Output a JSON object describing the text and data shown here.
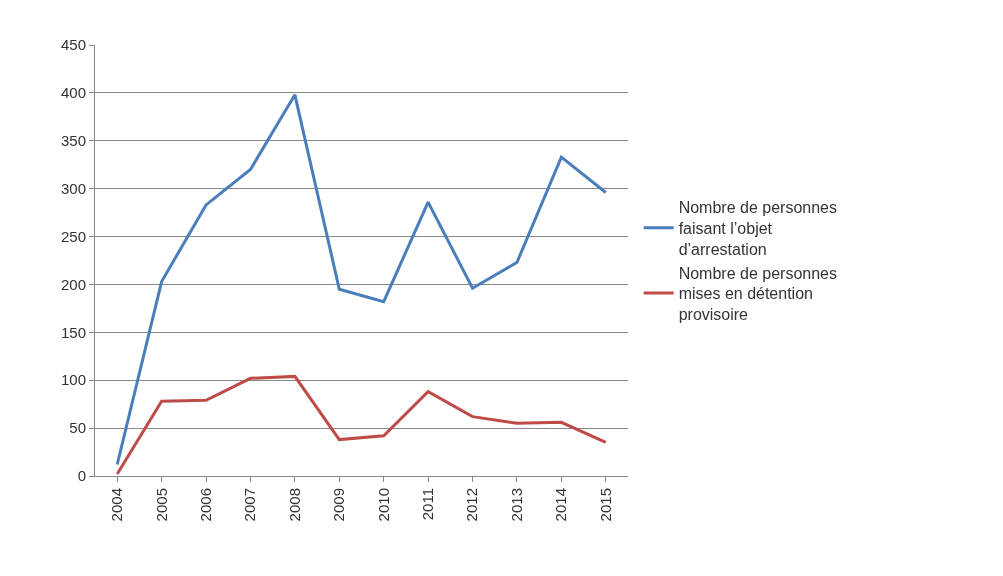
{
  "chart_data": {
    "type": "line",
    "categories": [
      "2004",
      "2005",
      "2006",
      "2007",
      "2008",
      "2009",
      "2010",
      "2011",
      "2012",
      "2013",
      "2014",
      "2015"
    ],
    "series": [
      {
        "name": "Nombre de personnes faisant l’objet d’arrestation",
        "color": "#4a7ebb",
        "values": [
          12,
          203,
          283,
          320,
          398,
          195,
          182,
          286,
          196,
          223,
          333,
          296
        ]
      },
      {
        "name": "Nombre de personnes mises en détention provisoire",
        "color": "#be4b48",
        "values": [
          2,
          78,
          79,
          102,
          104,
          38,
          42,
          88,
          62,
          55,
          56,
          35
        ]
      }
    ],
    "ylim": [
      0,
      450
    ],
    "yticks": [
      0,
      50,
      100,
      150,
      200,
      250,
      300,
      350,
      400,
      450
    ],
    "grid": "y",
    "legend": "right",
    "marker": "none",
    "line_style": "solid"
  }
}
